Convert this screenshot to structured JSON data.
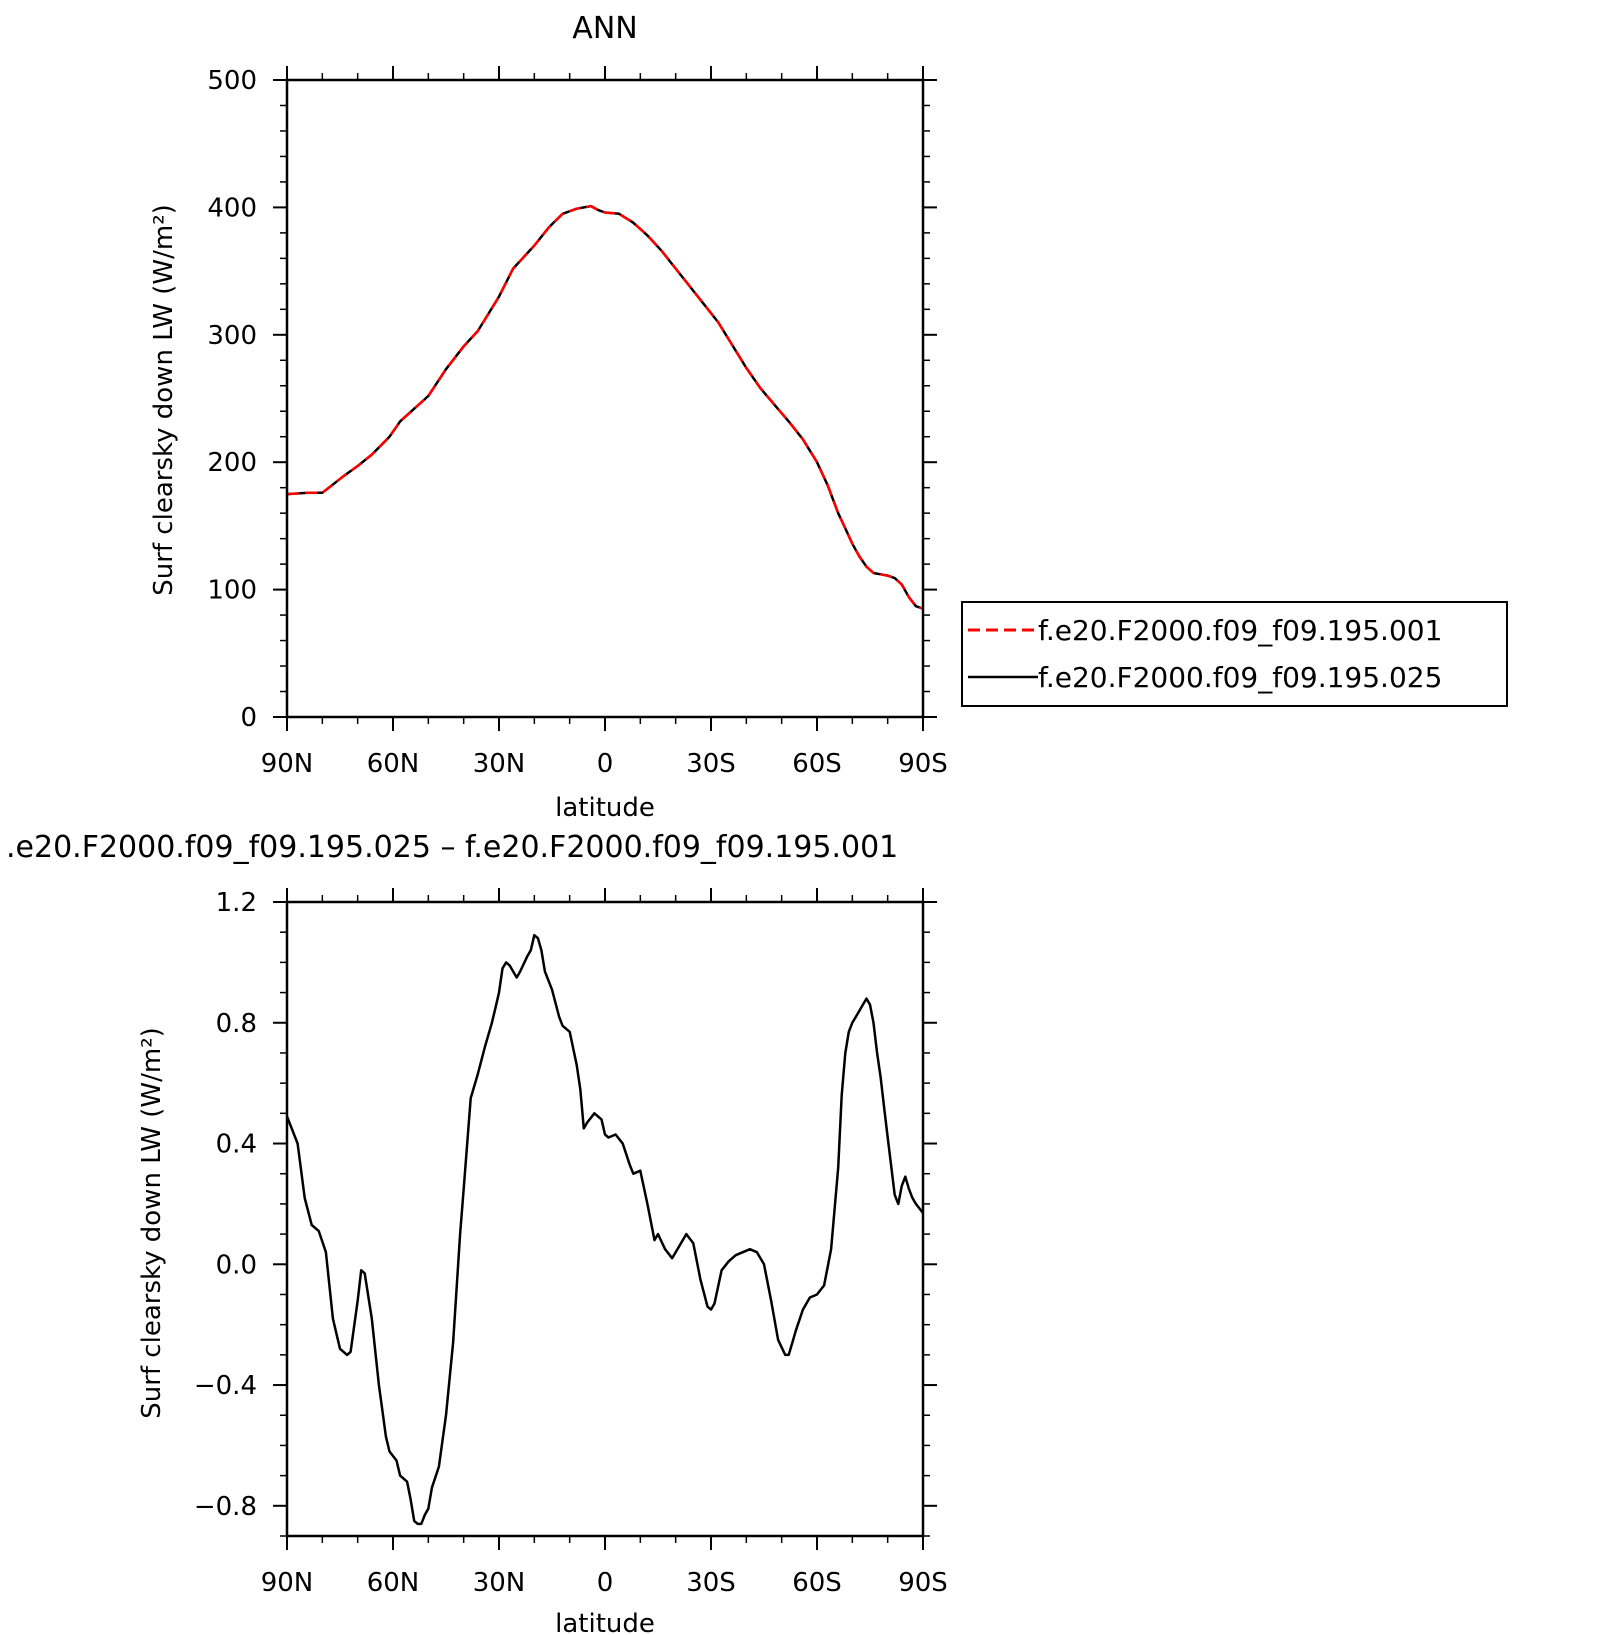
{
  "chart_data": [
    {
      "type": "line",
      "title": "ANN",
      "xlabel": "latitude",
      "ylabel": "Surf clearsky down LW (W/m²)",
      "xlim": [
        90,
        -90
      ],
      "ylim": [
        0,
        500
      ],
      "xticks": [
        {
          "value": 90,
          "label": "90N"
        },
        {
          "value": 60,
          "label": "60N"
        },
        {
          "value": 30,
          "label": "30N"
        },
        {
          "value": 0,
          "label": "0"
        },
        {
          "value": -30,
          "label": "30S"
        },
        {
          "value": -60,
          "label": "60S"
        },
        {
          "value": -90,
          "label": "90S"
        }
      ],
      "yticks": [
        {
          "value": 0,
          "label": "0"
        },
        {
          "value": 100,
          "label": "100"
        },
        {
          "value": 200,
          "label": "200"
        },
        {
          "value": 300,
          "label": "300"
        },
        {
          "value": 400,
          "label": "400"
        },
        {
          "value": 500,
          "label": "500"
        }
      ],
      "legend_position": "right",
      "series": [
        {
          "name": "f.e20.F2000.f09_f09.195.001",
          "color": "#ff0000",
          "style": "dashed",
          "x": [
            90,
            84,
            80,
            74,
            70,
            66,
            61,
            58,
            54,
            50,
            45,
            40,
            36,
            30,
            26,
            20,
            16,
            12,
            8,
            4,
            2,
            0,
            -4,
            -8,
            -12,
            -16,
            -20,
            -24,
            -28,
            -32,
            -36,
            -40,
            -44,
            -48,
            -52,
            -56,
            -60,
            -63,
            -66,
            -68,
            -70,
            -72,
            -74,
            -76,
            -78,
            -80,
            -82,
            -84,
            -86,
            -88,
            -90
          ],
          "values": [
            175,
            176,
            176,
            189,
            197,
            206,
            220,
            232,
            242,
            252,
            273,
            291,
            303,
            330,
            352,
            370,
            384,
            395,
            399,
            401,
            398,
            396,
            395,
            388,
            378,
            366,
            352,
            338,
            324,
            310,
            292,
            274,
            258,
            245,
            232,
            218,
            200,
            182,
            160,
            148,
            136,
            126,
            118,
            113,
            112,
            111,
            109,
            104,
            94,
            87,
            85
          ]
        },
        {
          "name": "f.e20.F2000.f09_f09.195.025",
          "color": "#000000",
          "style": "solid",
          "x": [
            90,
            84,
            80,
            74,
            70,
            66,
            61,
            58,
            54,
            50,
            45,
            40,
            36,
            30,
            26,
            20,
            16,
            12,
            8,
            4,
            2,
            0,
            -4,
            -8,
            -12,
            -16,
            -20,
            -24,
            -28,
            -32,
            -36,
            -40,
            -44,
            -48,
            -52,
            -56,
            -60,
            -63,
            -66,
            -68,
            -70,
            -72,
            -74,
            -76,
            -78,
            -80,
            -82,
            -84,
            -86,
            -88,
            -90
          ],
          "values": [
            175,
            176,
            176,
            189,
            197,
            206,
            220,
            232,
            242,
            252,
            273,
            291,
            303,
            330,
            352,
            370,
            384,
            395,
            399,
            401,
            398,
            396,
            395,
            388,
            378,
            366,
            352,
            338,
            324,
            310,
            292,
            274,
            258,
            245,
            232,
            218,
            200,
            182,
            160,
            148,
            136,
            126,
            118,
            113,
            112,
            111,
            109,
            104,
            94,
            87,
            85
          ]
        }
      ]
    },
    {
      "type": "line",
      "title": ".e20.F2000.f09_f09.195.025 – f.e20.F2000.f09_f09.195.001",
      "xlabel": "latitude",
      "ylabel": "Surf clearsky down LW (W/m²)",
      "xlim": [
        90,
        -90
      ],
      "ylim": [
        -0.9,
        1.2
      ],
      "xticks": [
        {
          "value": 90,
          "label": "90N"
        },
        {
          "value": 60,
          "label": "60N"
        },
        {
          "value": 30,
          "label": "30N"
        },
        {
          "value": 0,
          "label": "0"
        },
        {
          "value": -30,
          "label": "30S"
        },
        {
          "value": -60,
          "label": "60S"
        },
        {
          "value": -90,
          "label": "90S"
        }
      ],
      "yticks": [
        {
          "value": -0.8,
          "label": "−0.8"
        },
        {
          "value": -0.4,
          "label": "−0.4"
        },
        {
          "value": 0.0,
          "label": "0.0"
        },
        {
          "value": 0.4,
          "label": "0.4"
        },
        {
          "value": 0.8,
          "label": "0.8"
        },
        {
          "value": 1.2,
          "label": "1.2"
        }
      ],
      "series": [
        {
          "color": "#000000",
          "style": "solid",
          "x": [
            90,
            87,
            85,
            83,
            81,
            79,
            77,
            75,
            73,
            72,
            70,
            69,
            68,
            66,
            64,
            62,
            61,
            59,
            58,
            56,
            55,
            54,
            53,
            52,
            51,
            50,
            49,
            47,
            45,
            43,
            41,
            40,
            38,
            36,
            34,
            33,
            32,
            31,
            30,
            29,
            28,
            27,
            26,
            25,
            24,
            22,
            21,
            20,
            19,
            18,
            17,
            15,
            13,
            12,
            10,
            8,
            7,
            6,
            5,
            3,
            1,
            0,
            -1,
            -3,
            -5,
            -7,
            -8,
            -10,
            -12,
            -14,
            -15,
            -17,
            -19,
            -21,
            -23,
            -25,
            -27,
            -29,
            -30,
            -31,
            -33,
            -35,
            -37,
            -39,
            -41,
            -43,
            -45,
            -47,
            -49,
            -51,
            -52,
            -53,
            -54,
            -56,
            -58,
            -60,
            -62,
            -64,
            -66,
            -67,
            -68,
            -69,
            -70,
            -71,
            -72,
            -73,
            -74,
            -75,
            -76,
            -77,
            -78,
            -79,
            -80,
            -82,
            -83,
            -84,
            -85,
            -86,
            -87,
            -88,
            -90
          ],
          "values": [
            0.49,
            0.4,
            0.22,
            0.13,
            0.11,
            0.04,
            -0.18,
            -0.28,
            -0.3,
            -0.29,
            -0.12,
            -0.02,
            -0.03,
            -0.18,
            -0.4,
            -0.57,
            -0.62,
            -0.65,
            -0.7,
            -0.72,
            -0.78,
            -0.85,
            -0.86,
            -0.86,
            -0.83,
            -0.81,
            -0.74,
            -0.67,
            -0.5,
            -0.26,
            0.1,
            0.25,
            0.55,
            0.63,
            0.72,
            0.76,
            0.8,
            0.85,
            0.9,
            0.98,
            1.0,
            0.99,
            0.97,
            0.95,
            0.97,
            1.02,
            1.04,
            1.09,
            1.08,
            1.04,
            0.97,
            0.91,
            0.82,
            0.79,
            0.77,
            0.66,
            0.58,
            0.45,
            0.47,
            0.5,
            0.48,
            0.43,
            0.42,
            0.43,
            0.4,
            0.33,
            0.3,
            0.31,
            0.2,
            0.08,
            0.1,
            0.05,
            0.02,
            0.06,
            0.1,
            0.07,
            -0.05,
            -0.14,
            -0.15,
            -0.13,
            -0.02,
            0.01,
            0.03,
            0.04,
            0.05,
            0.04,
            0.0,
            -0.12,
            -0.25,
            -0.3,
            -0.3,
            -0.26,
            -0.22,
            -0.15,
            -0.11,
            -0.1,
            -0.07,
            0.05,
            0.32,
            0.56,
            0.7,
            0.77,
            0.8,
            0.82,
            0.84,
            0.86,
            0.88,
            0.86,
            0.8,
            0.7,
            0.62,
            0.52,
            0.42,
            0.23,
            0.2,
            0.26,
            0.29,
            0.25,
            0.22,
            0.2,
            0.17
          ]
        }
      ]
    }
  ]
}
